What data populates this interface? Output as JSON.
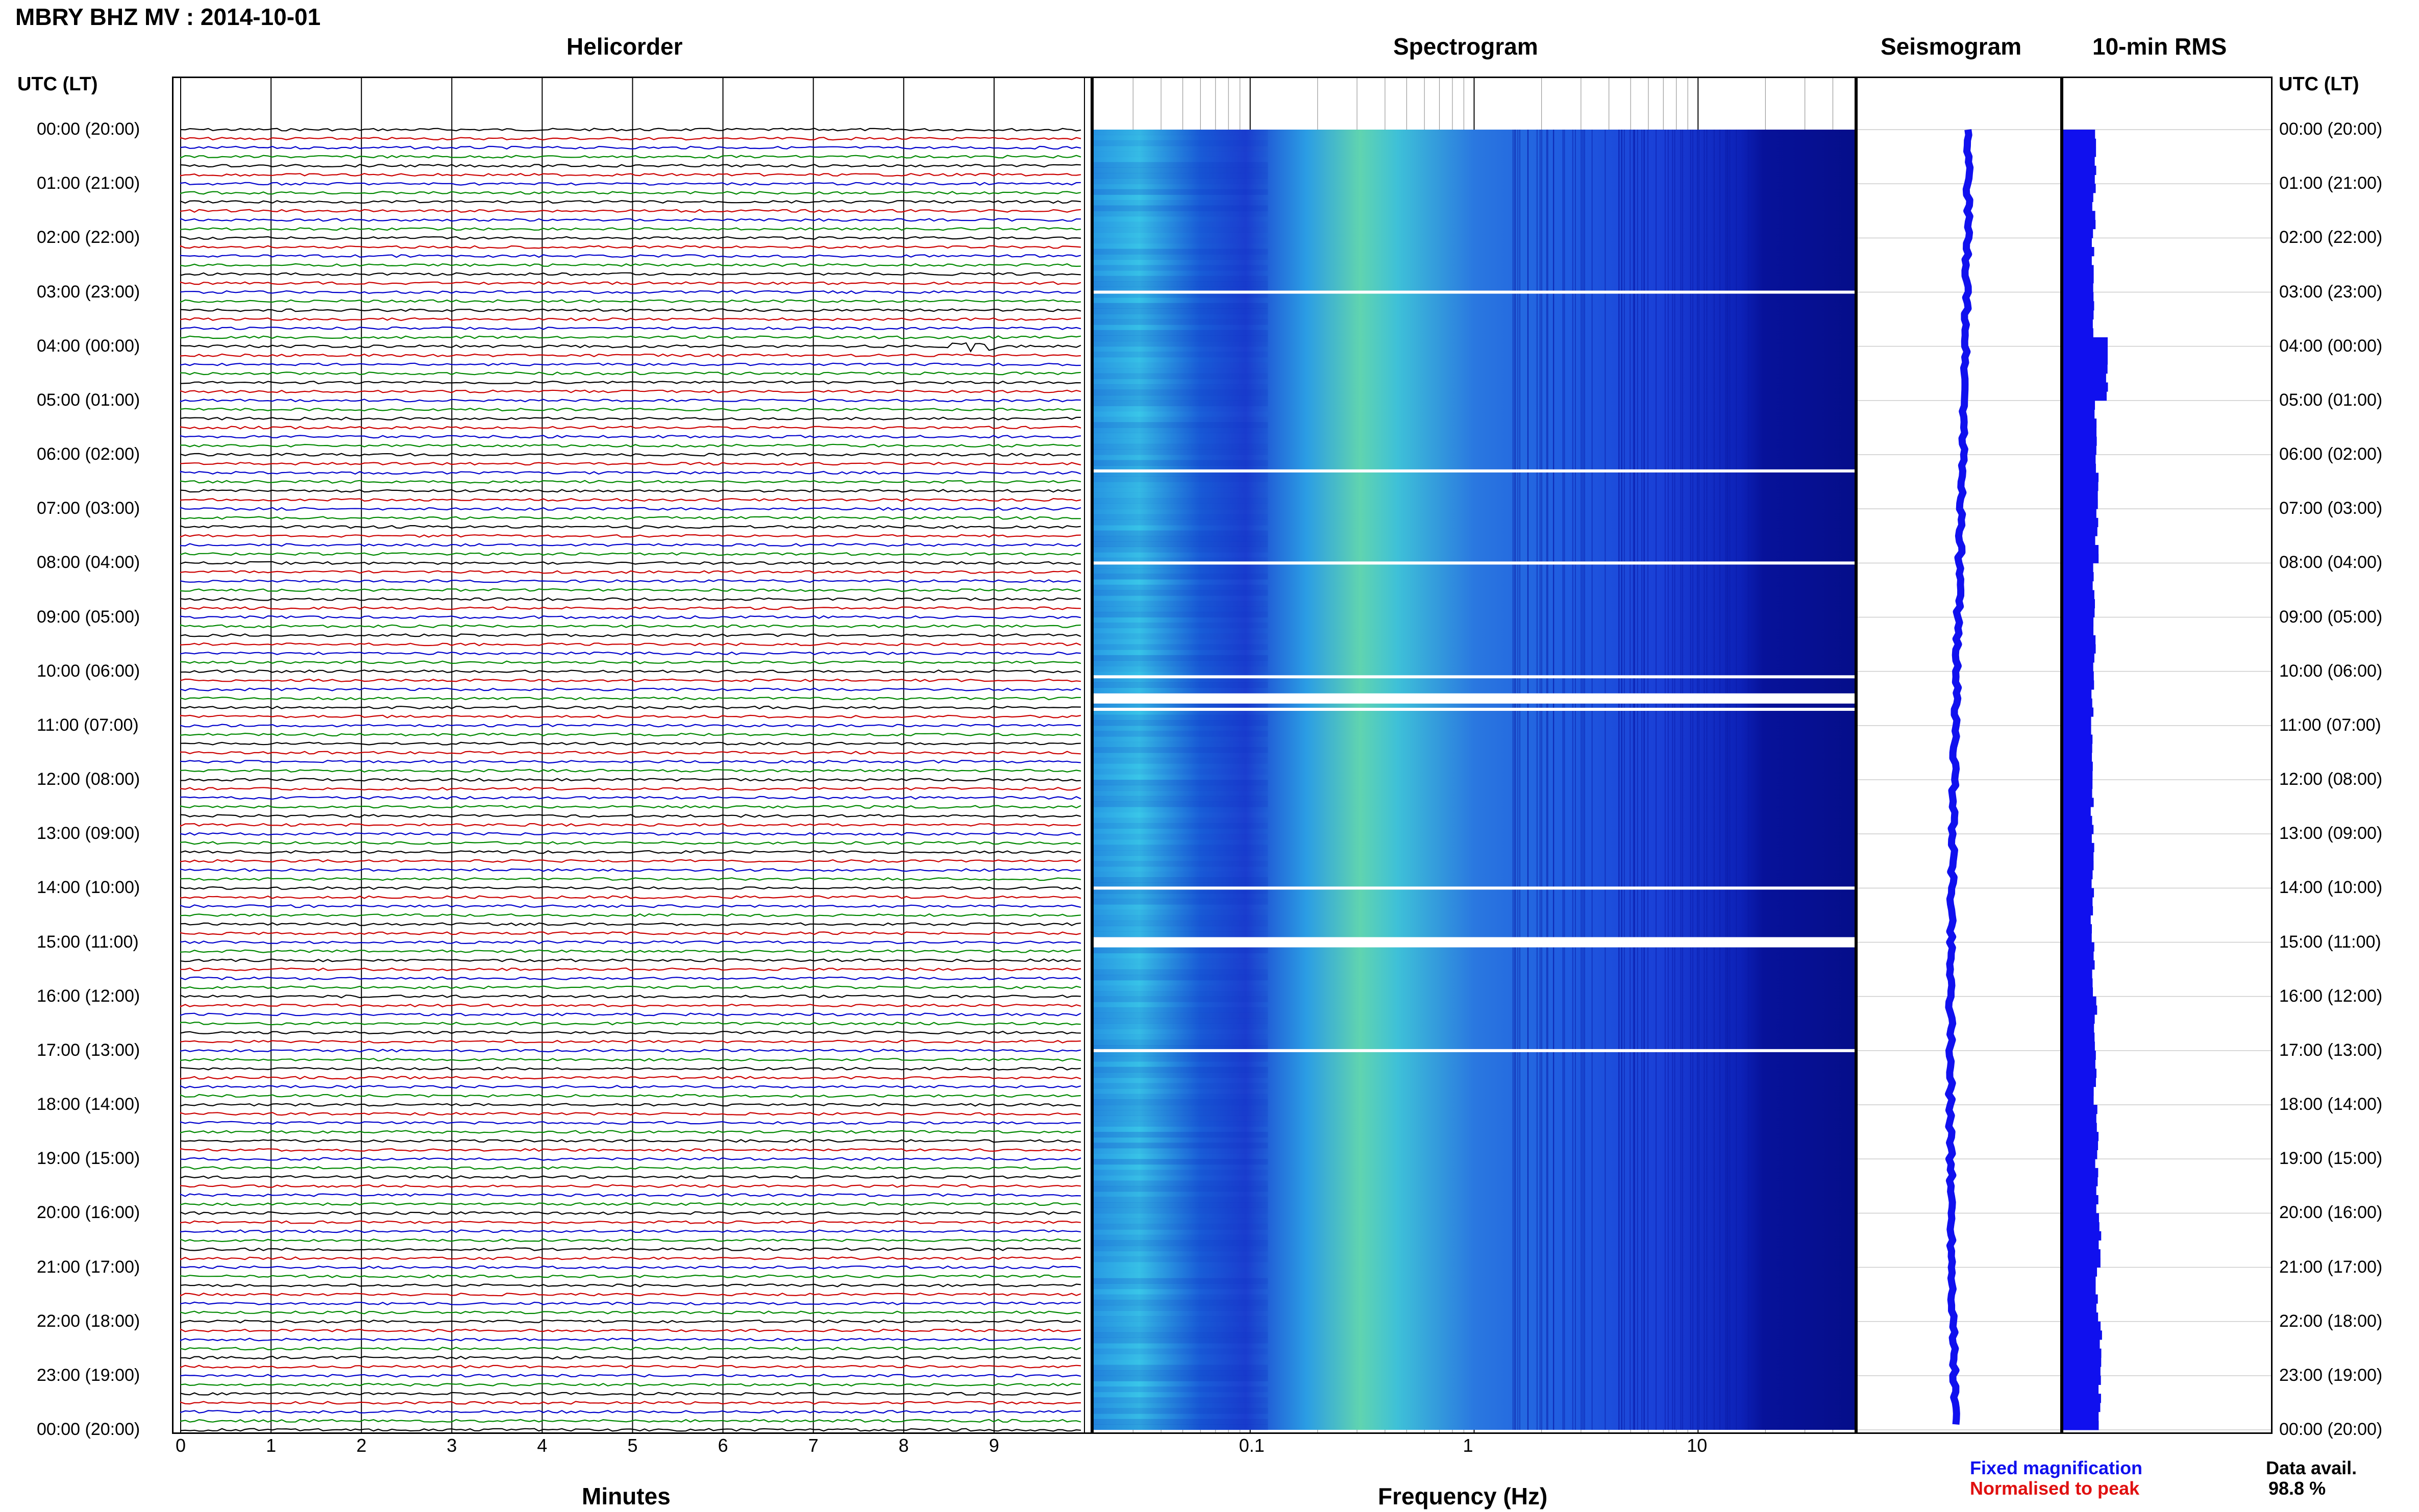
{
  "page": {
    "title": "MBRY BHZ MV : 2014-10-01",
    "panels": {
      "helicorder": "Helicorder",
      "spectrogram": "Spectrogram",
      "seismogram": "Seismogram",
      "rms": "10-min RMS"
    },
    "axis_heading": "UTC (LT)",
    "time_labels": [
      "00:00 (20:00)",
      "01:00 (21:00)",
      "02:00 (22:00)",
      "03:00 (23:00)",
      "04:00 (00:00)",
      "05:00 (01:00)",
      "06:00 (02:00)",
      "07:00 (03:00)",
      "08:00 (04:00)",
      "09:00 (05:00)",
      "10:00 (06:00)",
      "11:00 (07:00)",
      "12:00 (08:00)",
      "13:00 (09:00)",
      "14:00 (10:00)",
      "15:00 (11:00)",
      "16:00 (12:00)",
      "17:00 (13:00)",
      "18:00 (14:00)",
      "19:00 (15:00)",
      "20:00 (16:00)",
      "21:00 (17:00)",
      "22:00 (18:00)",
      "23:00 (19:00)",
      "00:00 (20:00)"
    ],
    "helicorder_xlabel": "Minutes",
    "helicorder_ticks": [
      "0",
      "1",
      "2",
      "3",
      "4",
      "5",
      "6",
      "7",
      "8",
      "9"
    ],
    "spectrogram_xlabel": "Frequency (Hz)",
    "spectrogram_ticks": [
      "0.1",
      "1",
      "10"
    ],
    "legend": {
      "fixed": "Fixed magnification",
      "normalised": "Normalised to peak",
      "fixed_color": "#1010ee",
      "normalised_color": "#e01010"
    },
    "data_avail_label": "Data avail.",
    "data_avail_value": "98.8 %"
  },
  "chart_data": {
    "type": "heatmap",
    "station": "MBRY BHZ MV",
    "date": "2014-10-01",
    "y_axis": {
      "label": "UTC (LT)",
      "range_hours": [
        0,
        24
      ]
    },
    "helicorder": {
      "xlabel": "Minutes",
      "xlim": [
        0,
        10
      ],
      "traces_per_hour": 6,
      "trace_colors": [
        "#000000",
        "#cc0000",
        "#0000cc",
        "#008800"
      ],
      "event_near": {
        "hour": 4.0,
        "minute": 9
      }
    },
    "spectrogram": {
      "xlabel": "Frequency (Hz)",
      "scale": "log",
      "xlim_hz": [
        0.02,
        50
      ],
      "gaps_hours": [
        3.0,
        6.3,
        8.0,
        10.1,
        10.5,
        10.7,
        14.0,
        15.0,
        17.0
      ],
      "energy_band_hz": [
        0.3,
        0.6
      ]
    },
    "seismogram": {
      "color": "#1010ee"
    },
    "rms_10min": {
      "color": "#1010ee",
      "series_hourly": [
        0.55,
        0.5,
        0.45,
        0.45,
        0.9,
        0.55,
        0.6,
        0.6,
        0.5,
        0.5,
        0.45,
        0.45,
        0.45,
        0.45,
        0.45,
        0.5,
        0.55,
        0.55,
        0.6,
        0.6,
        0.7,
        0.6,
        0.75,
        0.7,
        0.65
      ]
    },
    "data_availability_percent": 98.8
  }
}
